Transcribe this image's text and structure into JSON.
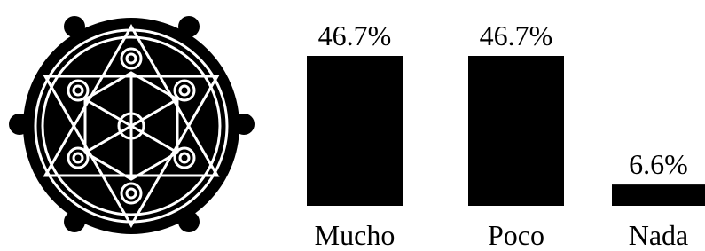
{
  "chart_data": {
    "type": "bar",
    "categories": [
      "Mucho",
      "Poco",
      "Nada"
    ],
    "values": [
      46.7,
      46.7,
      6.6
    ],
    "value_labels": [
      "46.7%",
      "46.7%",
      "6.6%"
    ],
    "color": "#000000"
  }
}
